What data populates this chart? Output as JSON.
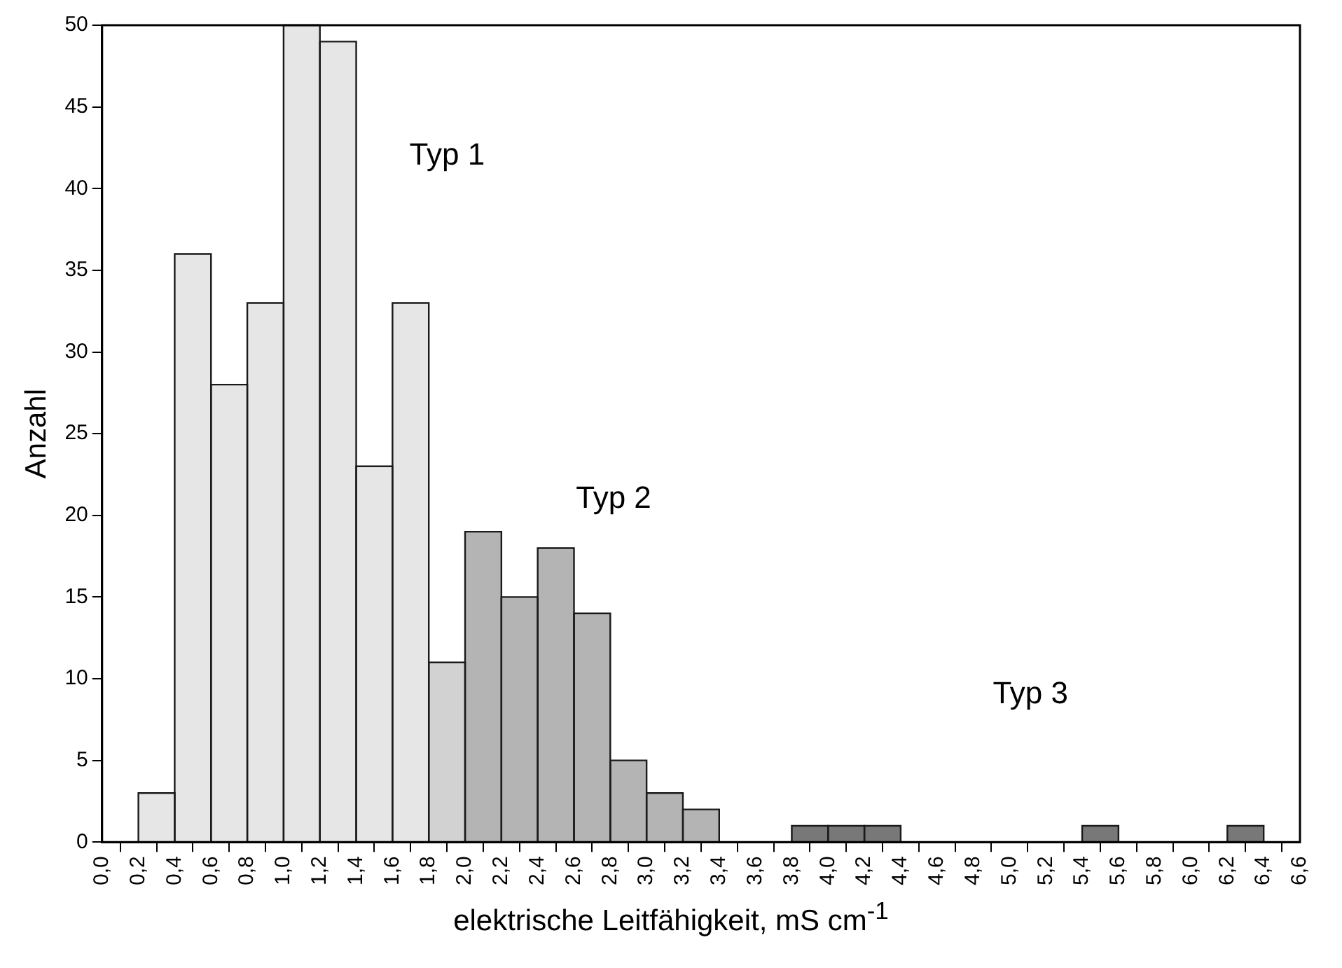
{
  "chart_data": {
    "type": "histogram",
    "xlabel": "elektrische Leitfähigkeit, mS cm$^{-1}$",
    "ylabel": "Anzahl",
    "bins": [
      0,
      0.2,
      0.4,
      0.6,
      0.8,
      1.0,
      1.2,
      1.4,
      1.6,
      1.8,
      2.0,
      2.2,
      2.4,
      2.6,
      2.8,
      3.0,
      3.2,
      3.4,
      3.6,
      3.8,
      4.0,
      4.2,
      4.4,
      4.6,
      4.8,
      5.0,
      5.2,
      5.4,
      5.6,
      5.8,
      6.0,
      6.2,
      6.4,
      6.6
    ],
    "values": [
      0,
      3,
      36,
      28,
      33,
      50,
      49,
      23,
      33,
      11,
      19,
      15,
      18,
      14,
      5,
      3,
      2,
      0,
      0,
      1,
      1,
      1,
      0,
      0,
      0,
      0,
      0,
      1,
      0,
      0,
      0,
      1,
      0
    ],
    "colors": [
      "#e6e6e6",
      "#e6e6e6",
      "#e6e6e6",
      "#e6e6e6",
      "#e6e6e6",
      "#e6e6e6",
      "#e6e6e6",
      "#e6e6e6",
      "#e6e6e6",
      "#d2d2d2",
      "#b4b4b4",
      "#b4b4b4",
      "#b4b4b4",
      "#b4b4b4",
      "#b4b4b4",
      "#b4b4b4",
      "#b4b4b4",
      "#787878",
      "#787878",
      "#787878",
      "#787878",
      "#787878",
      "#787878",
      "#787878",
      "#787878",
      "#787878",
      "#787878",
      "#787878",
      "#787878",
      "#787878",
      "#787878",
      "#787878",
      "#787878"
    ],
    "xlim": [
      0,
      6.6
    ],
    "xticks": [
      {
        "value": 0,
        "label": "0,0"
      },
      {
        "value": 0.2,
        "label": "0,2"
      },
      {
        "value": 0.4,
        "label": "0,4"
      },
      {
        "value": 0.6,
        "label": "0,6"
      },
      {
        "value": 0.8,
        "label": "0,8"
      },
      {
        "value": 1.0,
        "label": "1,0"
      },
      {
        "value": 1.2,
        "label": "1,2"
      },
      {
        "value": 1.4,
        "label": "1,4"
      },
      {
        "value": 1.6,
        "label": "1,6"
      },
      {
        "value": 1.8,
        "label": "1,8"
      },
      {
        "value": 2.0,
        "label": "2,0"
      },
      {
        "value": 2.2,
        "label": "2,2"
      },
      {
        "value": 2.4,
        "label": "2,4"
      },
      {
        "value": 2.6,
        "label": "2,6"
      },
      {
        "value": 2.8,
        "label": "2,8"
      },
      {
        "value": 3.0,
        "label": "3,0"
      },
      {
        "value": 3.2,
        "label": "3,2"
      },
      {
        "value": 3.4,
        "label": "3,4"
      },
      {
        "value": 3.6,
        "label": "3,6"
      },
      {
        "value": 3.8,
        "label": "3,8"
      },
      {
        "value": 4.0,
        "label": "4,0"
      },
      {
        "value": 4.2,
        "label": "4,2"
      },
      {
        "value": 4.4,
        "label": "4,4"
      },
      {
        "value": 4.6,
        "label": "4,6"
      },
      {
        "value": 4.8,
        "label": "4,8"
      },
      {
        "value": 5.0,
        "label": "5,0"
      },
      {
        "value": 5.2,
        "label": "5,2"
      },
      {
        "value": 5.4,
        "label": "5,4"
      },
      {
        "value": 5.6,
        "label": "5,6"
      },
      {
        "value": 5.8,
        "label": "5,8"
      },
      {
        "value": 6.0,
        "label": "6,0"
      },
      {
        "value": 6.2,
        "label": "6,2"
      },
      {
        "value": 6.4,
        "label": "6,4"
      },
      {
        "value": 6.6,
        "label": "6,6"
      }
    ],
    "ylim": [
      0,
      50
    ],
    "yticks": [
      0,
      5,
      10,
      15,
      20,
      25,
      30,
      35,
      40,
      45,
      50
    ],
    "annotations": [
      "Typ 1",
      "Typ 2",
      "Typ 3"
    ],
    "grid": false,
    "legend": false
  }
}
